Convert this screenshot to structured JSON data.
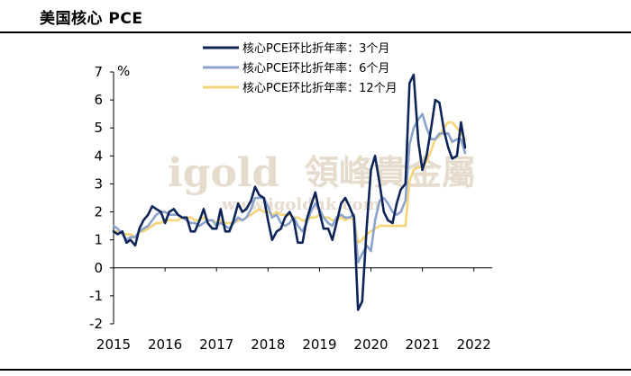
{
  "header": {
    "title": "美国核心 PCE"
  },
  "watermark": {
    "brand": "igold",
    "cn": "領峰貴金屬",
    "url": "www.igoldhk.com"
  },
  "chart_data": {
    "type": "line",
    "ylabel": "%",
    "ylim": [
      -2,
      7
    ],
    "y_ticks": [
      "-2",
      "-1",
      "0",
      "1",
      "2",
      "3",
      "4",
      "5",
      "6",
      "7"
    ],
    "x_ticks": [
      "2015",
      "2016",
      "2017",
      "2018",
      "2019",
      "2020",
      "2021",
      "2022"
    ],
    "xlim": [
      2015.0,
      2022.25
    ],
    "legend_position": "top",
    "series": [
      {
        "name": "核心PCE环比折年率：3个月",
        "color": "#0f2557",
        "points": [
          [
            2015.0,
            1.3
          ],
          [
            2015.08,
            1.2
          ],
          [
            2015.17,
            1.3
          ],
          [
            2015.25,
            0.9
          ],
          [
            2015.33,
            1.0
          ],
          [
            2015.42,
            0.8
          ],
          [
            2015.5,
            1.4
          ],
          [
            2015.58,
            1.7
          ],
          [
            2015.67,
            1.9
          ],
          [
            2015.75,
            2.2
          ],
          [
            2015.83,
            2.1
          ],
          [
            2015.92,
            2.0
          ],
          [
            2016.0,
            1.6
          ],
          [
            2016.08,
            2.0
          ],
          [
            2016.17,
            2.1
          ],
          [
            2016.25,
            1.9
          ],
          [
            2016.33,
            1.8
          ],
          [
            2016.42,
            1.8
          ],
          [
            2016.5,
            1.3
          ],
          [
            2016.58,
            1.3
          ],
          [
            2016.67,
            1.7
          ],
          [
            2016.75,
            2.1
          ],
          [
            2016.83,
            1.6
          ],
          [
            2016.92,
            1.4
          ],
          [
            2017.0,
            1.4
          ],
          [
            2017.08,
            2.1
          ],
          [
            2017.17,
            1.3
          ],
          [
            2017.25,
            1.3
          ],
          [
            2017.33,
            1.7
          ],
          [
            2017.42,
            2.3
          ],
          [
            2017.5,
            2.0
          ],
          [
            2017.58,
            2.1
          ],
          [
            2017.67,
            2.4
          ],
          [
            2017.75,
            2.9
          ],
          [
            2017.83,
            2.6
          ],
          [
            2017.92,
            2.5
          ],
          [
            2018.0,
            1.7
          ],
          [
            2018.08,
            1.0
          ],
          [
            2018.17,
            1.3
          ],
          [
            2018.25,
            1.4
          ],
          [
            2018.33,
            1.8
          ],
          [
            2018.42,
            2.0
          ],
          [
            2018.5,
            1.7
          ],
          [
            2018.58,
            0.9
          ],
          [
            2018.67,
            0.9
          ],
          [
            2018.75,
            1.7
          ],
          [
            2018.83,
            2.2
          ],
          [
            2018.92,
            2.7
          ],
          [
            2019.0,
            2.0
          ],
          [
            2019.08,
            1.4
          ],
          [
            2019.17,
            1.4
          ],
          [
            2019.25,
            1.0
          ],
          [
            2019.33,
            1.6
          ],
          [
            2019.42,
            2.3
          ],
          [
            2019.5,
            2.5
          ],
          [
            2019.58,
            2.2
          ],
          [
            2019.67,
            1.8
          ],
          [
            2019.75,
            -1.5
          ],
          [
            2019.83,
            -1.2
          ],
          [
            2019.92,
            1.5
          ],
          [
            2020.0,
            3.5
          ],
          [
            2020.08,
            4.0
          ],
          [
            2020.17,
            3.0
          ],
          [
            2020.25,
            2.0
          ],
          [
            2020.33,
            1.7
          ],
          [
            2020.42,
            1.6
          ],
          [
            2020.5,
            2.3
          ],
          [
            2020.58,
            2.8
          ],
          [
            2020.67,
            3.0
          ],
          [
            2020.75,
            6.6
          ],
          [
            2020.83,
            6.9
          ],
          [
            2020.92,
            4.5
          ],
          [
            2021.0,
            3.5
          ],
          [
            2021.08,
            4.0
          ],
          [
            2021.17,
            5.0
          ],
          [
            2021.25,
            6.0
          ],
          [
            2021.33,
            5.9
          ],
          [
            2021.42,
            4.9
          ],
          [
            2021.5,
            4.3
          ],
          [
            2021.58,
            3.9
          ],
          [
            2021.67,
            4.0
          ],
          [
            2021.75,
            5.2
          ],
          [
            2021.83,
            4.3
          ]
        ]
      },
      {
        "name": "核心PCE环比折年率：6个月",
        "color": "#8ca3cc",
        "points": [
          [
            2015.0,
            1.5
          ],
          [
            2015.08,
            1.4
          ],
          [
            2015.17,
            1.2
          ],
          [
            2015.25,
            1.0
          ],
          [
            2015.33,
            1.1
          ],
          [
            2015.42,
            1.1
          ],
          [
            2015.5,
            1.3
          ],
          [
            2015.58,
            1.4
          ],
          [
            2015.67,
            1.5
          ],
          [
            2015.75,
            1.7
          ],
          [
            2015.83,
            1.9
          ],
          [
            2015.92,
            2.0
          ],
          [
            2016.0,
            2.0
          ],
          [
            2016.08,
            1.9
          ],
          [
            2016.17,
            1.9
          ],
          [
            2016.25,
            1.9
          ],
          [
            2016.33,
            1.8
          ],
          [
            2016.42,
            1.7
          ],
          [
            2016.5,
            1.6
          ],
          [
            2016.58,
            1.6
          ],
          [
            2016.67,
            1.5
          ],
          [
            2016.75,
            1.6
          ],
          [
            2016.83,
            1.7
          ],
          [
            2016.92,
            1.7
          ],
          [
            2017.0,
            1.5
          ],
          [
            2017.08,
            1.6
          ],
          [
            2017.17,
            1.5
          ],
          [
            2017.25,
            1.4
          ],
          [
            2017.33,
            1.6
          ],
          [
            2017.42,
            1.8
          ],
          [
            2017.5,
            1.7
          ],
          [
            2017.58,
            1.8
          ],
          [
            2017.67,
            2.1
          ],
          [
            2017.75,
            2.5
          ],
          [
            2017.83,
            2.5
          ],
          [
            2017.92,
            2.5
          ],
          [
            2018.0,
            2.2
          ],
          [
            2018.08,
            1.8
          ],
          [
            2018.17,
            1.9
          ],
          [
            2018.25,
            1.6
          ],
          [
            2018.33,
            1.5
          ],
          [
            2018.42,
            1.6
          ],
          [
            2018.5,
            1.8
          ],
          [
            2018.58,
            1.5
          ],
          [
            2018.67,
            1.3
          ],
          [
            2018.75,
            1.6
          ],
          [
            2018.83,
            2.0
          ],
          [
            2018.92,
            2.3
          ],
          [
            2019.0,
            2.1
          ],
          [
            2019.08,
            1.8
          ],
          [
            2019.17,
            1.6
          ],
          [
            2019.25,
            1.5
          ],
          [
            2019.33,
            1.8
          ],
          [
            2019.42,
            1.9
          ],
          [
            2019.5,
            1.8
          ],
          [
            2019.58,
            1.8
          ],
          [
            2019.67,
            1.9
          ],
          [
            2019.75,
            0.2
          ],
          [
            2019.83,
            0.5
          ],
          [
            2019.92,
            0.8
          ],
          [
            2020.0,
            0.6
          ],
          [
            2020.08,
            1.7
          ],
          [
            2020.17,
            2.4
          ],
          [
            2020.25,
            2.5
          ],
          [
            2020.33,
            2.3
          ],
          [
            2020.42,
            2.0
          ],
          [
            2020.5,
            1.9
          ],
          [
            2020.58,
            2.0
          ],
          [
            2020.67,
            2.4
          ],
          [
            2020.75,
            4.4
          ],
          [
            2020.83,
            5.0
          ],
          [
            2020.92,
            5.3
          ],
          [
            2021.0,
            5.5
          ],
          [
            2021.08,
            5.0
          ],
          [
            2021.17,
            4.6
          ],
          [
            2021.25,
            4.6
          ],
          [
            2021.33,
            4.8
          ],
          [
            2021.42,
            4.8
          ],
          [
            2021.5,
            4.8
          ],
          [
            2021.58,
            4.5
          ],
          [
            2021.67,
            4.6
          ],
          [
            2021.75,
            4.6
          ],
          [
            2021.83,
            4.1
          ]
        ]
      },
      {
        "name": "核心PCE环比折年率：12个月",
        "color": "#f4d57a",
        "points": [
          [
            2015.0,
            1.3
          ],
          [
            2015.08,
            1.3
          ],
          [
            2015.17,
            1.2
          ],
          [
            2015.25,
            1.2
          ],
          [
            2015.33,
            1.2
          ],
          [
            2015.42,
            1.1
          ],
          [
            2015.5,
            1.3
          ],
          [
            2015.58,
            1.3
          ],
          [
            2015.67,
            1.4
          ],
          [
            2015.75,
            1.5
          ],
          [
            2015.83,
            1.6
          ],
          [
            2015.92,
            1.6
          ],
          [
            2016.0,
            1.7
          ],
          [
            2016.08,
            1.7
          ],
          [
            2016.17,
            1.7
          ],
          [
            2016.25,
            1.7
          ],
          [
            2016.33,
            1.8
          ],
          [
            2016.42,
            1.8
          ],
          [
            2016.5,
            1.8
          ],
          [
            2016.58,
            1.7
          ],
          [
            2016.67,
            1.7
          ],
          [
            2016.75,
            1.8
          ],
          [
            2016.83,
            1.7
          ],
          [
            2016.92,
            1.7
          ],
          [
            2017.0,
            1.6
          ],
          [
            2017.08,
            1.7
          ],
          [
            2017.17,
            1.6
          ],
          [
            2017.25,
            1.6
          ],
          [
            2017.33,
            1.6
          ],
          [
            2017.42,
            1.7
          ],
          [
            2017.5,
            1.7
          ],
          [
            2017.58,
            1.8
          ],
          [
            2017.67,
            1.9
          ],
          [
            2017.75,
            2.0
          ],
          [
            2017.83,
            2.1
          ],
          [
            2017.92,
            2.0
          ],
          [
            2018.0,
            2.0
          ],
          [
            2018.08,
            1.9
          ],
          [
            2018.17,
            2.0
          ],
          [
            2018.25,
            1.9
          ],
          [
            2018.33,
            1.9
          ],
          [
            2018.42,
            1.9
          ],
          [
            2018.5,
            1.8
          ],
          [
            2018.58,
            1.8
          ],
          [
            2018.67,
            1.7
          ],
          [
            2018.75,
            1.7
          ],
          [
            2018.83,
            1.8
          ],
          [
            2018.92,
            1.8
          ],
          [
            2019.0,
            1.9
          ],
          [
            2019.08,
            1.8
          ],
          [
            2019.17,
            1.8
          ],
          [
            2019.25,
            1.7
          ],
          [
            2019.33,
            1.7
          ],
          [
            2019.42,
            1.8
          ],
          [
            2019.5,
            1.7
          ],
          [
            2019.58,
            1.8
          ],
          [
            2019.67,
            1.7
          ],
          [
            2019.75,
            0.9
          ],
          [
            2019.83,
            1.0
          ],
          [
            2019.92,
            1.2
          ],
          [
            2020.0,
            1.3
          ],
          [
            2020.08,
            1.4
          ],
          [
            2020.17,
            1.5
          ],
          [
            2020.25,
            1.5
          ],
          [
            2020.33,
            1.5
          ],
          [
            2020.42,
            1.5
          ],
          [
            2020.5,
            1.5
          ],
          [
            2020.58,
            1.5
          ],
          [
            2020.67,
            1.5
          ],
          [
            2020.75,
            3.1
          ],
          [
            2020.83,
            3.5
          ],
          [
            2020.92,
            3.6
          ],
          [
            2021.0,
            3.6
          ],
          [
            2021.08,
            3.8
          ],
          [
            2021.17,
            4.2
          ],
          [
            2021.25,
            4.6
          ],
          [
            2021.33,
            4.7
          ],
          [
            2021.42,
            5.0
          ],
          [
            2021.5,
            5.2
          ],
          [
            2021.58,
            5.2
          ],
          [
            2021.67,
            5.0
          ],
          [
            2021.75,
            4.8
          ],
          [
            2021.83,
            4.6
          ]
        ]
      }
    ]
  }
}
